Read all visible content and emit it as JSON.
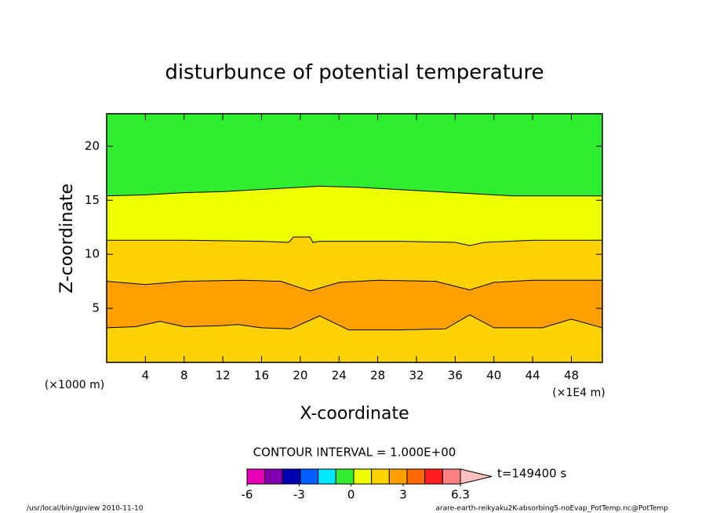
{
  "chart_data": {
    "type": "contour",
    "title": "disturbunce of potential temperature",
    "x_label": "X-coordinate",
    "y_label": "Z-coordinate",
    "x_unit": "(×1E4 m)",
    "y_unit": "(×1000 m)",
    "xlim": [
      0,
      51.2
    ],
    "ylim": [
      0,
      23
    ],
    "xticks": [
      4,
      8,
      12,
      16,
      20,
      24,
      28,
      32,
      36,
      40,
      44,
      48
    ],
    "yticks": [
      5,
      10,
      15,
      20
    ],
    "contour_interval": "CONTOUR INTERVAL = 1.000E+00",
    "time": "t=149400 s",
    "band_colors": [
      "#2eee2e",
      "#eeff00",
      "#ffd200",
      "#ffa000",
      "#ffd200"
    ],
    "line_color": "#000000",
    "series": [
      {
        "x": [
          0,
          4,
          8,
          12,
          16,
          20,
          22,
          26,
          30,
          34,
          38,
          42,
          46,
          51.2
        ],
        "values": [
          15.4,
          15.5,
          15.7,
          15.8,
          16.0,
          16.2,
          16.3,
          16.2,
          16.0,
          15.8,
          15.6,
          15.4,
          15.4,
          15.4
        ]
      },
      {
        "x": [
          0,
          8,
          16,
          18.8,
          19.3,
          21,
          21.3,
          22,
          30,
          36,
          37.5,
          39,
          44,
          51.2
        ],
        "values": [
          11.3,
          11.3,
          11.2,
          11.1,
          11.6,
          11.6,
          11.1,
          11.2,
          11.2,
          11.1,
          10.8,
          11.1,
          11.3,
          11.3
        ]
      },
      {
        "x": [
          0,
          4,
          8,
          14,
          18,
          21,
          24,
          28,
          34,
          37.5,
          40,
          44,
          51.2
        ],
        "values": [
          7.5,
          7.2,
          7.5,
          7.6,
          7.5,
          6.6,
          7.4,
          7.6,
          7.5,
          6.7,
          7.4,
          7.6,
          7.6
        ]
      },
      {
        "x": [
          0,
          3,
          5.5,
          8,
          12,
          13.5,
          16,
          19,
          22,
          25,
          30,
          35,
          37.5,
          40,
          45,
          48,
          51.2
        ],
        "values": [
          3.2,
          3.3,
          3.8,
          3.3,
          3.4,
          3.5,
          3.2,
          3.1,
          4.3,
          3.0,
          3.0,
          3.1,
          4.4,
          3.2,
          3.2,
          4.0,
          3.2
        ]
      }
    ],
    "colorbar": {
      "colors": [
        "#e800b8",
        "#8000b0",
        "#0000b0",
        "#0060ff",
        "#00e8ff",
        "#2eee2e",
        "#eeff00",
        "#ffd200",
        "#ffa000",
        "#ff6a00",
        "#ff1e1e",
        "#ff8080"
      ],
      "extend_color": "#ffc0c0",
      "lim": [
        -6,
        6.3
      ],
      "ticks": [
        -6,
        -3,
        0,
        3,
        6.3
      ]
    },
    "footer_left": "/usr/local/bin/gpview  2010-11-10",
    "footer_right": "arare-earth-reikyaku2K-absorbing5-noEvap_PotTemp.nc@PotTemp"
  }
}
